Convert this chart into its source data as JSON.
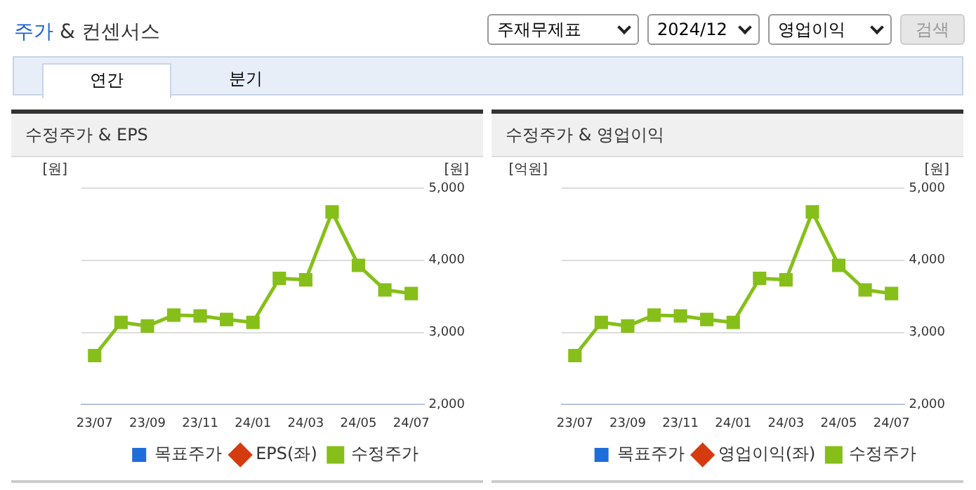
{
  "chart_data": [
    {
      "type": "other",
      "title": "주가 & 컨센서스",
      "annotations": [
        "주재무제표",
        "2024/12",
        "영업이익",
        "검색",
        "연간",
        "분기"
      ]
    },
    {
      "type": "line",
      "title": "수정주가 & EPS",
      "ylabel": "[원]",
      "y2label": "[원]",
      "categories": [
        "23/07",
        null,
        "23/09",
        null,
        "23/11",
        null,
        "24/01",
        null,
        "24/03",
        null,
        "24/05",
        null,
        "24/07"
      ],
      "series": [
        {
          "name": "목표주가",
          "type": "bar",
          "color": "#1f6ddb",
          "values": [
            null,
            null,
            null,
            null,
            null,
            null,
            null,
            null,
            null,
            null,
            null,
            null,
            null
          ]
        },
        {
          "name": "EPS(좌)",
          "type": "line",
          "marker": "diamond",
          "color": "#d43b0f",
          "values": [
            null,
            null,
            null,
            null,
            null,
            null,
            null,
            null,
            null,
            null,
            null,
            null,
            null
          ]
        },
        {
          "name": "수정주가",
          "type": "line",
          "marker": "square",
          "axis": "y2",
          "color": "#86bf1a",
          "values": [
            2680,
            3140,
            3090,
            3240,
            3230,
            3180,
            3140,
            3750,
            3730,
            4670,
            3930,
            3590,
            3540
          ]
        }
      ],
      "y2lim": [
        2000,
        5000
      ],
      "y2ticks": [
        {
          "value": 2000,
          "label": "2,000"
        },
        {
          "value": 3000,
          "label": "3,000"
        },
        {
          "value": 4000,
          "label": "4,000"
        },
        {
          "value": 5000,
          "label": "5,000"
        }
      ],
      "grid": "y",
      "legend": "bottom"
    },
    {
      "type": "line",
      "title": "수정주가 & 영업이익",
      "ylabel": "[억원]",
      "y2label": "[원]",
      "categories": [
        "23/07",
        null,
        "23/09",
        null,
        "23/11",
        null,
        "24/01",
        null,
        "24/03",
        null,
        "24/05",
        null,
        "24/07"
      ],
      "series": [
        {
          "name": "목표주가",
          "type": "bar",
          "color": "#1f6ddb",
          "values": [
            null,
            null,
            null,
            null,
            null,
            null,
            null,
            null,
            null,
            null,
            null,
            null,
            null
          ]
        },
        {
          "name": "영업이익(좌)",
          "type": "line",
          "marker": "diamond",
          "color": "#d43b0f",
          "values": [
            null,
            null,
            null,
            null,
            null,
            null,
            null,
            null,
            null,
            null,
            null,
            null,
            null
          ]
        },
        {
          "name": "수정주가",
          "type": "line",
          "marker": "square",
          "axis": "y2",
          "color": "#86bf1a",
          "values": [
            2680,
            3140,
            3090,
            3240,
            3230,
            3180,
            3140,
            3750,
            3730,
            4670,
            3930,
            3590,
            3540
          ]
        }
      ],
      "y2lim": [
        2000,
        5000
      ],
      "y2ticks": [
        {
          "value": 2000,
          "label": "2,000"
        },
        {
          "value": 3000,
          "label": "3,000"
        },
        {
          "value": 4000,
          "label": "4,000"
        },
        {
          "value": 5000,
          "label": "5,000"
        }
      ],
      "grid": "y",
      "legend": "bottom"
    }
  ]
}
